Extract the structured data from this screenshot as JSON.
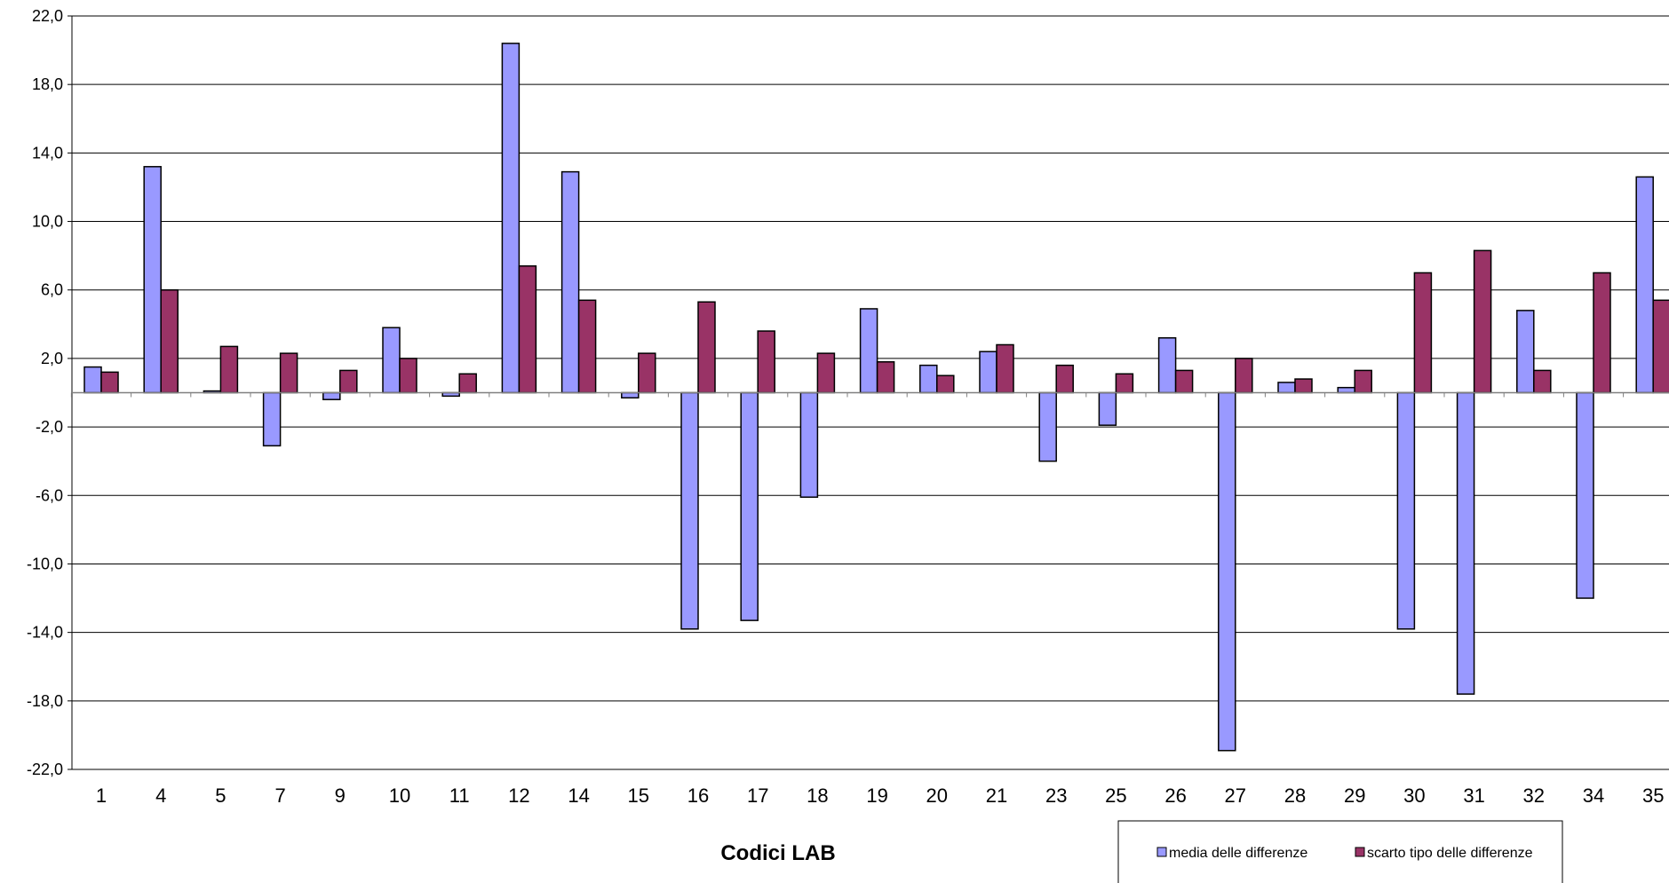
{
  "colors": {
    "series1": "#9999FF",
    "series2": "#993366",
    "grid": "#000000",
    "axis": "#808080"
  },
  "chart_data": {
    "type": "bar",
    "title": "",
    "xlabel": "Codici LAB",
    "ylabel": "",
    "ylim": [
      -22,
      22
    ],
    "yticks": [
      "22,0",
      "18,0",
      "14,0",
      "10,0",
      "6,0",
      "2,0",
      "-2,0",
      "-6,0",
      "-10,0",
      "-14,0",
      "-18,0",
      "-22,0"
    ],
    "ytick_values": [
      22,
      18,
      14,
      10,
      6,
      2,
      -2,
      -6,
      -10,
      -14,
      -18,
      -22
    ],
    "grid": true,
    "legend_position": "bottom-right",
    "categories": [
      "1",
      "4",
      "5",
      "7",
      "9",
      "10",
      "11",
      "12",
      "14",
      "15",
      "16",
      "17",
      "18",
      "19",
      "20",
      "21",
      "23",
      "25",
      "26",
      "27",
      "28",
      "29",
      "30",
      "31",
      "32",
      "34",
      "35"
    ],
    "series": [
      {
        "name": "media delle differenze",
        "values": [
          1.5,
          13.2,
          0.1,
          -3.1,
          -0.4,
          3.8,
          -0.2,
          20.4,
          12.9,
          -0.3,
          -13.8,
          -13.3,
          -6.1,
          4.9,
          1.6,
          2.4,
          -4.0,
          -1.9,
          3.2,
          -20.9,
          0.6,
          0.3,
          -13.8,
          -17.6,
          4.8,
          -12.0,
          12.6
        ]
      },
      {
        "name": "scarto tipo delle differenze",
        "values": [
          1.2,
          6.0,
          2.7,
          2.3,
          1.3,
          2.0,
          1.1,
          7.4,
          5.4,
          2.3,
          5.3,
          3.6,
          2.3,
          1.8,
          1.0,
          2.8,
          1.6,
          1.1,
          1.3,
          2.0,
          0.8,
          1.3,
          7.0,
          8.3,
          1.3,
          7.0,
          5.4
        ]
      }
    ]
  }
}
